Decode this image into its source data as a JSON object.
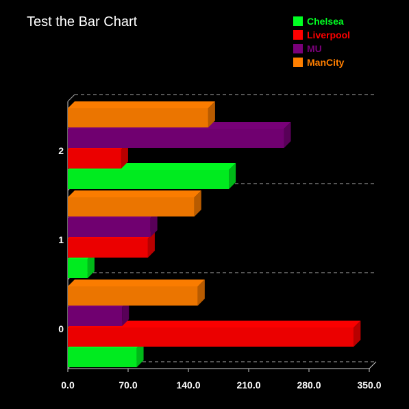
{
  "chart_data": {
    "type": "bar",
    "orientation": "horizontal",
    "style": "3d",
    "title": "Test the Bar Chart",
    "categories": [
      "0",
      "1",
      "2"
    ],
    "series": [
      {
        "name": "Chelsea",
        "color": "#00ff22",
        "values": [
          80,
          23,
          187
        ]
      },
      {
        "name": "Liverpool",
        "color": "#ff0000",
        "values": [
          332,
          93,
          62
        ]
      },
      {
        "name": "MU",
        "color": "#7a007a",
        "values": [
          63,
          96,
          251
        ]
      },
      {
        "name": "ManCity",
        "color": "#ff7f00",
        "values": [
          151,
          147,
          163
        ]
      }
    ],
    "xticks": [
      "0.0",
      "70.0",
      "140.0",
      "210.0",
      "280.0",
      "350.0"
    ],
    "xlim": [
      0,
      350
    ],
    "xlabel": "",
    "ylabel": "",
    "grid": true,
    "legend": "top-right"
  }
}
